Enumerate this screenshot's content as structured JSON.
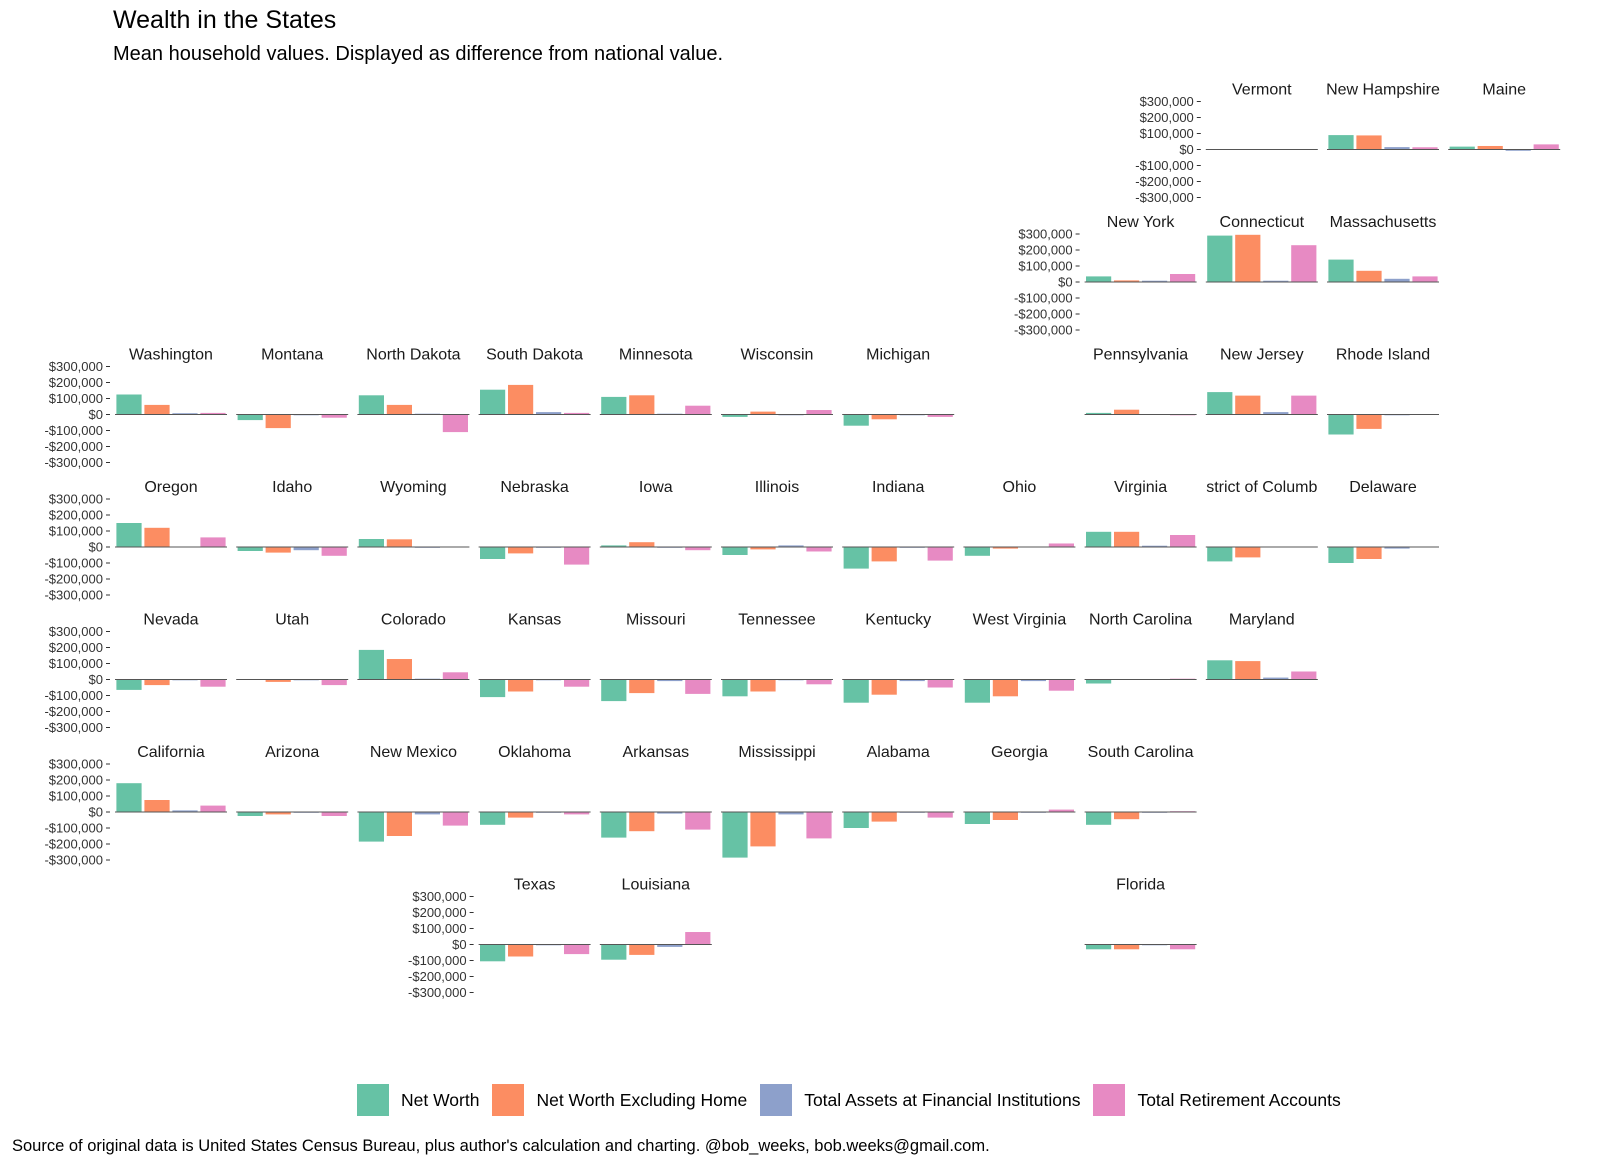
{
  "title": "Wealth in the States",
  "subtitle": "Mean household values. Displayed as difference from national value.",
  "source": "Source of original data is United States Census Bureau, plus author's calculation and charting. @bob_weeks, bob.weeks@gmail.com.",
  "colors": [
    "#66c2a5",
    "#fc8d62",
    "#8da0cb",
    "#e78ac3"
  ],
  "chart_data": {
    "type": "bar",
    "layout": "small-multiples geofacet",
    "series_names": [
      "Net Worth",
      "Net Worth Excluding Home",
      "Total Assets at Financial Institutions",
      "Total Retirement Accounts"
    ],
    "ylim": [
      -300000,
      300000
    ],
    "y_ticks": [
      300000,
      200000,
      100000,
      0,
      -100000,
      -200000,
      -300000
    ],
    "y_tick_labels": [
      "$300,000",
      "$200,000",
      "$100,000",
      "$0",
      "-$100,000",
      "-$200,000",
      "-$300,000"
    ],
    "grid": false,
    "legend": "bottom",
    "panels": [
      {
        "label": "Vermont",
        "values": [
          0,
          0,
          0,
          0
        ]
      },
      {
        "label": "New Hampshire",
        "values": [
          90000,
          88000,
          15000,
          14000
        ]
      },
      {
        "label": "Maine",
        "values": [
          18000,
          22000,
          -8000,
          32000
        ]
      },
      {
        "label": "New York",
        "values": [
          35000,
          10000,
          8000,
          50000
        ]
      },
      {
        "label": "Connecticut",
        "values": [
          290000,
          295000,
          8000,
          230000
        ]
      },
      {
        "label": "Massachusetts",
        "values": [
          140000,
          70000,
          20000,
          35000
        ]
      },
      {
        "label": "Washington",
        "values": [
          125000,
          60000,
          8000,
          10000
        ]
      },
      {
        "label": "Montana",
        "values": [
          -35000,
          -85000,
          -5000,
          -20000
        ]
      },
      {
        "label": "North Dakota",
        "values": [
          120000,
          60000,
          5000,
          -110000
        ]
      },
      {
        "label": "South Dakota",
        "values": [
          155000,
          185000,
          15000,
          10000
        ]
      },
      {
        "label": "Minnesota",
        "values": [
          110000,
          120000,
          5000,
          55000
        ]
      },
      {
        "label": "Wisconsin",
        "values": [
          -15000,
          18000,
          -5000,
          28000
        ]
      },
      {
        "label": "Michigan",
        "values": [
          -70000,
          -30000,
          -5000,
          -15000
        ]
      },
      {
        "label": "Pennsylvania",
        "values": [
          10000,
          30000,
          -3000,
          -5000
        ]
      },
      {
        "label": "New Jersey",
        "values": [
          140000,
          118000,
          15000,
          118000
        ]
      },
      {
        "label": "Rhode Island",
        "values": [
          -125000,
          -90000,
          -5000,
          0
        ]
      },
      {
        "label": "Oregon",
        "values": [
          150000,
          120000,
          0,
          60000
        ]
      },
      {
        "label": "Idaho",
        "values": [
          -25000,
          -35000,
          -20000,
          -55000
        ]
      },
      {
        "label": "Wyoming",
        "values": [
          50000,
          48000,
          -5000,
          0
        ]
      },
      {
        "label": "Nebraska",
        "values": [
          -75000,
          -40000,
          -5000,
          -110000
        ]
      },
      {
        "label": "Iowa",
        "values": [
          10000,
          30000,
          -5000,
          -20000
        ]
      },
      {
        "label": "Illinois",
        "values": [
          -50000,
          -15000,
          10000,
          -28000
        ]
      },
      {
        "label": "Indiana",
        "values": [
          -135000,
          -90000,
          -5000,
          -85000
        ]
      },
      {
        "label": "Ohio",
        "values": [
          -55000,
          -10000,
          -3000,
          22000
        ]
      },
      {
        "label": "Virginia",
        "values": [
          95000,
          95000,
          8000,
          75000
        ]
      },
      {
        "label": "strict of Columb",
        "values": [
          -90000,
          -65000,
          0,
          0
        ]
      },
      {
        "label": "Delaware",
        "values": [
          -100000,
          -75000,
          -10000,
          0
        ]
      },
      {
        "label": "Nevada",
        "values": [
          -65000,
          -35000,
          -5000,
          -45000
        ]
      },
      {
        "label": "Utah",
        "values": [
          0,
          -15000,
          -5000,
          -35000
        ]
      },
      {
        "label": "Colorado",
        "values": [
          185000,
          128000,
          5000,
          45000
        ]
      },
      {
        "label": "Kansas",
        "values": [
          -110000,
          -75000,
          -5000,
          -45000
        ]
      },
      {
        "label": "Missouri",
        "values": [
          -135000,
          -85000,
          -10000,
          -90000
        ]
      },
      {
        "label": "Tennessee",
        "values": [
          -105000,
          -75000,
          -5000,
          -30000
        ]
      },
      {
        "label": "Kentucky",
        "values": [
          -145000,
          -95000,
          -10000,
          -50000
        ]
      },
      {
        "label": "West Virginia",
        "values": [
          -145000,
          -105000,
          -10000,
          -70000
        ]
      },
      {
        "label": "North Carolina",
        "values": [
          -25000,
          0,
          0,
          5000
        ]
      },
      {
        "label": "Maryland",
        "values": [
          120000,
          115000,
          12000,
          50000
        ]
      },
      {
        "label": "California",
        "values": [
          180000,
          75000,
          10000,
          40000
        ]
      },
      {
        "label": "Arizona",
        "values": [
          -25000,
          -15000,
          -5000,
          -25000
        ]
      },
      {
        "label": "New Mexico",
        "values": [
          -185000,
          -150000,
          -15000,
          -85000
        ]
      },
      {
        "label": "Oklahoma",
        "values": [
          -80000,
          -35000,
          -5000,
          -15000
        ]
      },
      {
        "label": "Arkansas",
        "values": [
          -160000,
          -120000,
          -10000,
          -110000
        ]
      },
      {
        "label": "Mississippi",
        "values": [
          -285000,
          -215000,
          -15000,
          -165000
        ]
      },
      {
        "label": "Alabama",
        "values": [
          -100000,
          -60000,
          -5000,
          -35000
        ]
      },
      {
        "label": "Georgia",
        "values": [
          -75000,
          -50000,
          -5000,
          15000
        ]
      },
      {
        "label": "South Carolina",
        "values": [
          -80000,
          -45000,
          -5000,
          5000
        ]
      },
      {
        "label": "Texas",
        "values": [
          -105000,
          -75000,
          -5000,
          -60000
        ]
      },
      {
        "label": "Louisiana",
        "values": [
          -95000,
          -65000,
          -15000,
          78000
        ]
      },
      {
        "label": "Florida",
        "values": [
          -30000,
          -30000,
          -5000,
          -30000
        ]
      }
    ]
  }
}
